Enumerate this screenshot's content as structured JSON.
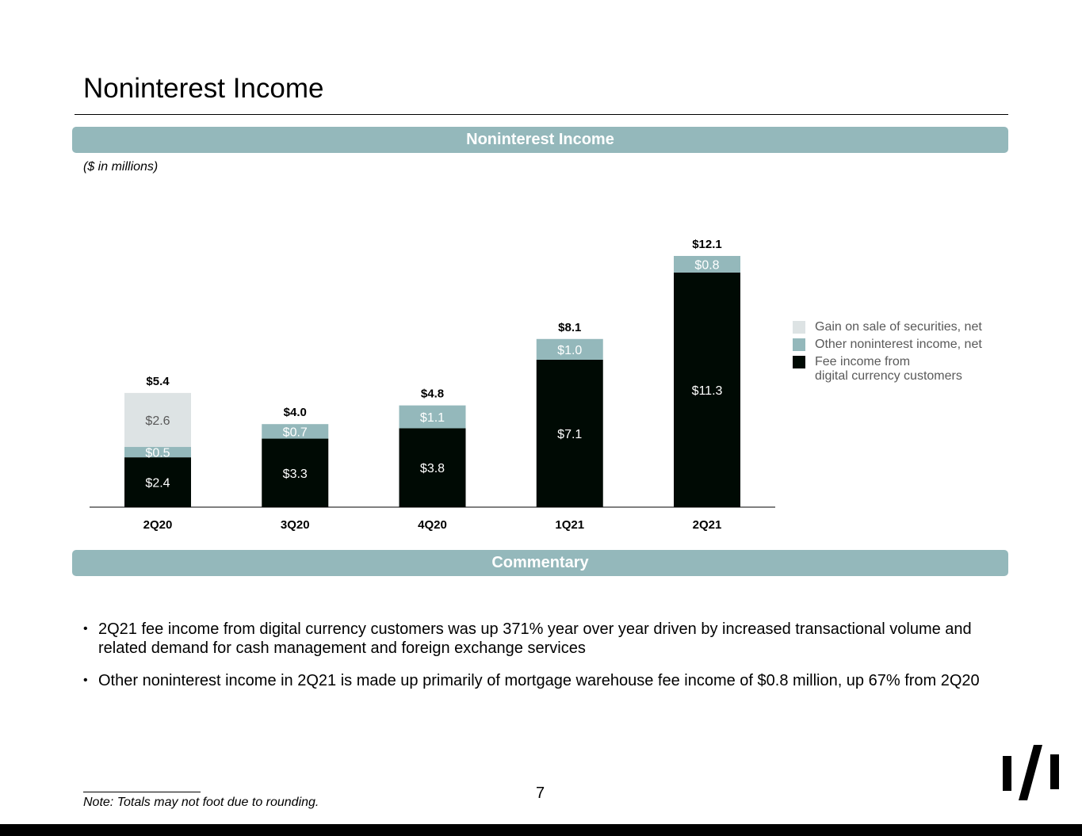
{
  "page": {
    "title": "Noninterest Income",
    "chart_band_label": "Noninterest Income",
    "commentary_band_label": "Commentary",
    "units_label": "($ in millions)",
    "bullets": [
      "2Q21 fee income from digital currency customers was up 371% year over year driven by increased transactional volume and related demand for cash management and foreign exchange services",
      "Other noninterest income in 2Q21 is made up primarily of mortgage warehouse fee income of $0.8 million, up 67% from 2Q20"
    ],
    "note": "Note: Totals may not foot due to rounding.",
    "page_number": "7",
    "logo_icon": "company-logo-icon"
  },
  "chart_data": {
    "type": "bar",
    "stacked": true,
    "categories": [
      "2Q20",
      "3Q20",
      "4Q20",
      "1Q21",
      "2Q21"
    ],
    "series": [
      {
        "name": "Fee income from\ndigital currency customers",
        "values": [
          2.4,
          3.3,
          3.8,
          7.1,
          11.3
        ],
        "labels": [
          "$2.4",
          "$3.3",
          "$3.8",
          "$7.1",
          "$11.3"
        ],
        "color": "#000a04",
        "label_color": "#ffffff"
      },
      {
        "name": "Other noninterest income, net",
        "values": [
          0.5,
          0.7,
          1.1,
          1.0,
          0.8
        ],
        "labels": [
          "$0.5",
          "$0.7",
          "$1.1",
          "$1.0",
          "$0.8"
        ],
        "color": "#94b8bb",
        "label_color": "#ffffff"
      },
      {
        "name": "Gain on sale of securities, net",
        "values": [
          2.6,
          0,
          0,
          0,
          0
        ],
        "labels": [
          "$2.6",
          "",
          "",
          "",
          ""
        ],
        "color": "#dde3e4",
        "label_color": "#595959"
      }
    ],
    "totals": [
      5.4,
      4.0,
      4.8,
      8.1,
      12.1
    ],
    "total_labels": [
      "$5.4",
      "$4.0",
      "$4.8",
      "$8.1",
      "$12.1"
    ],
    "legend_order": [
      "Gain on sale of securities, net",
      "Other noninterest income, net",
      "Fee income from\ndigital currency customers"
    ],
    "legend_position": "right",
    "ylim": [
      0,
      14
    ],
    "grid": false,
    "xlabel": "",
    "ylabel": ""
  }
}
